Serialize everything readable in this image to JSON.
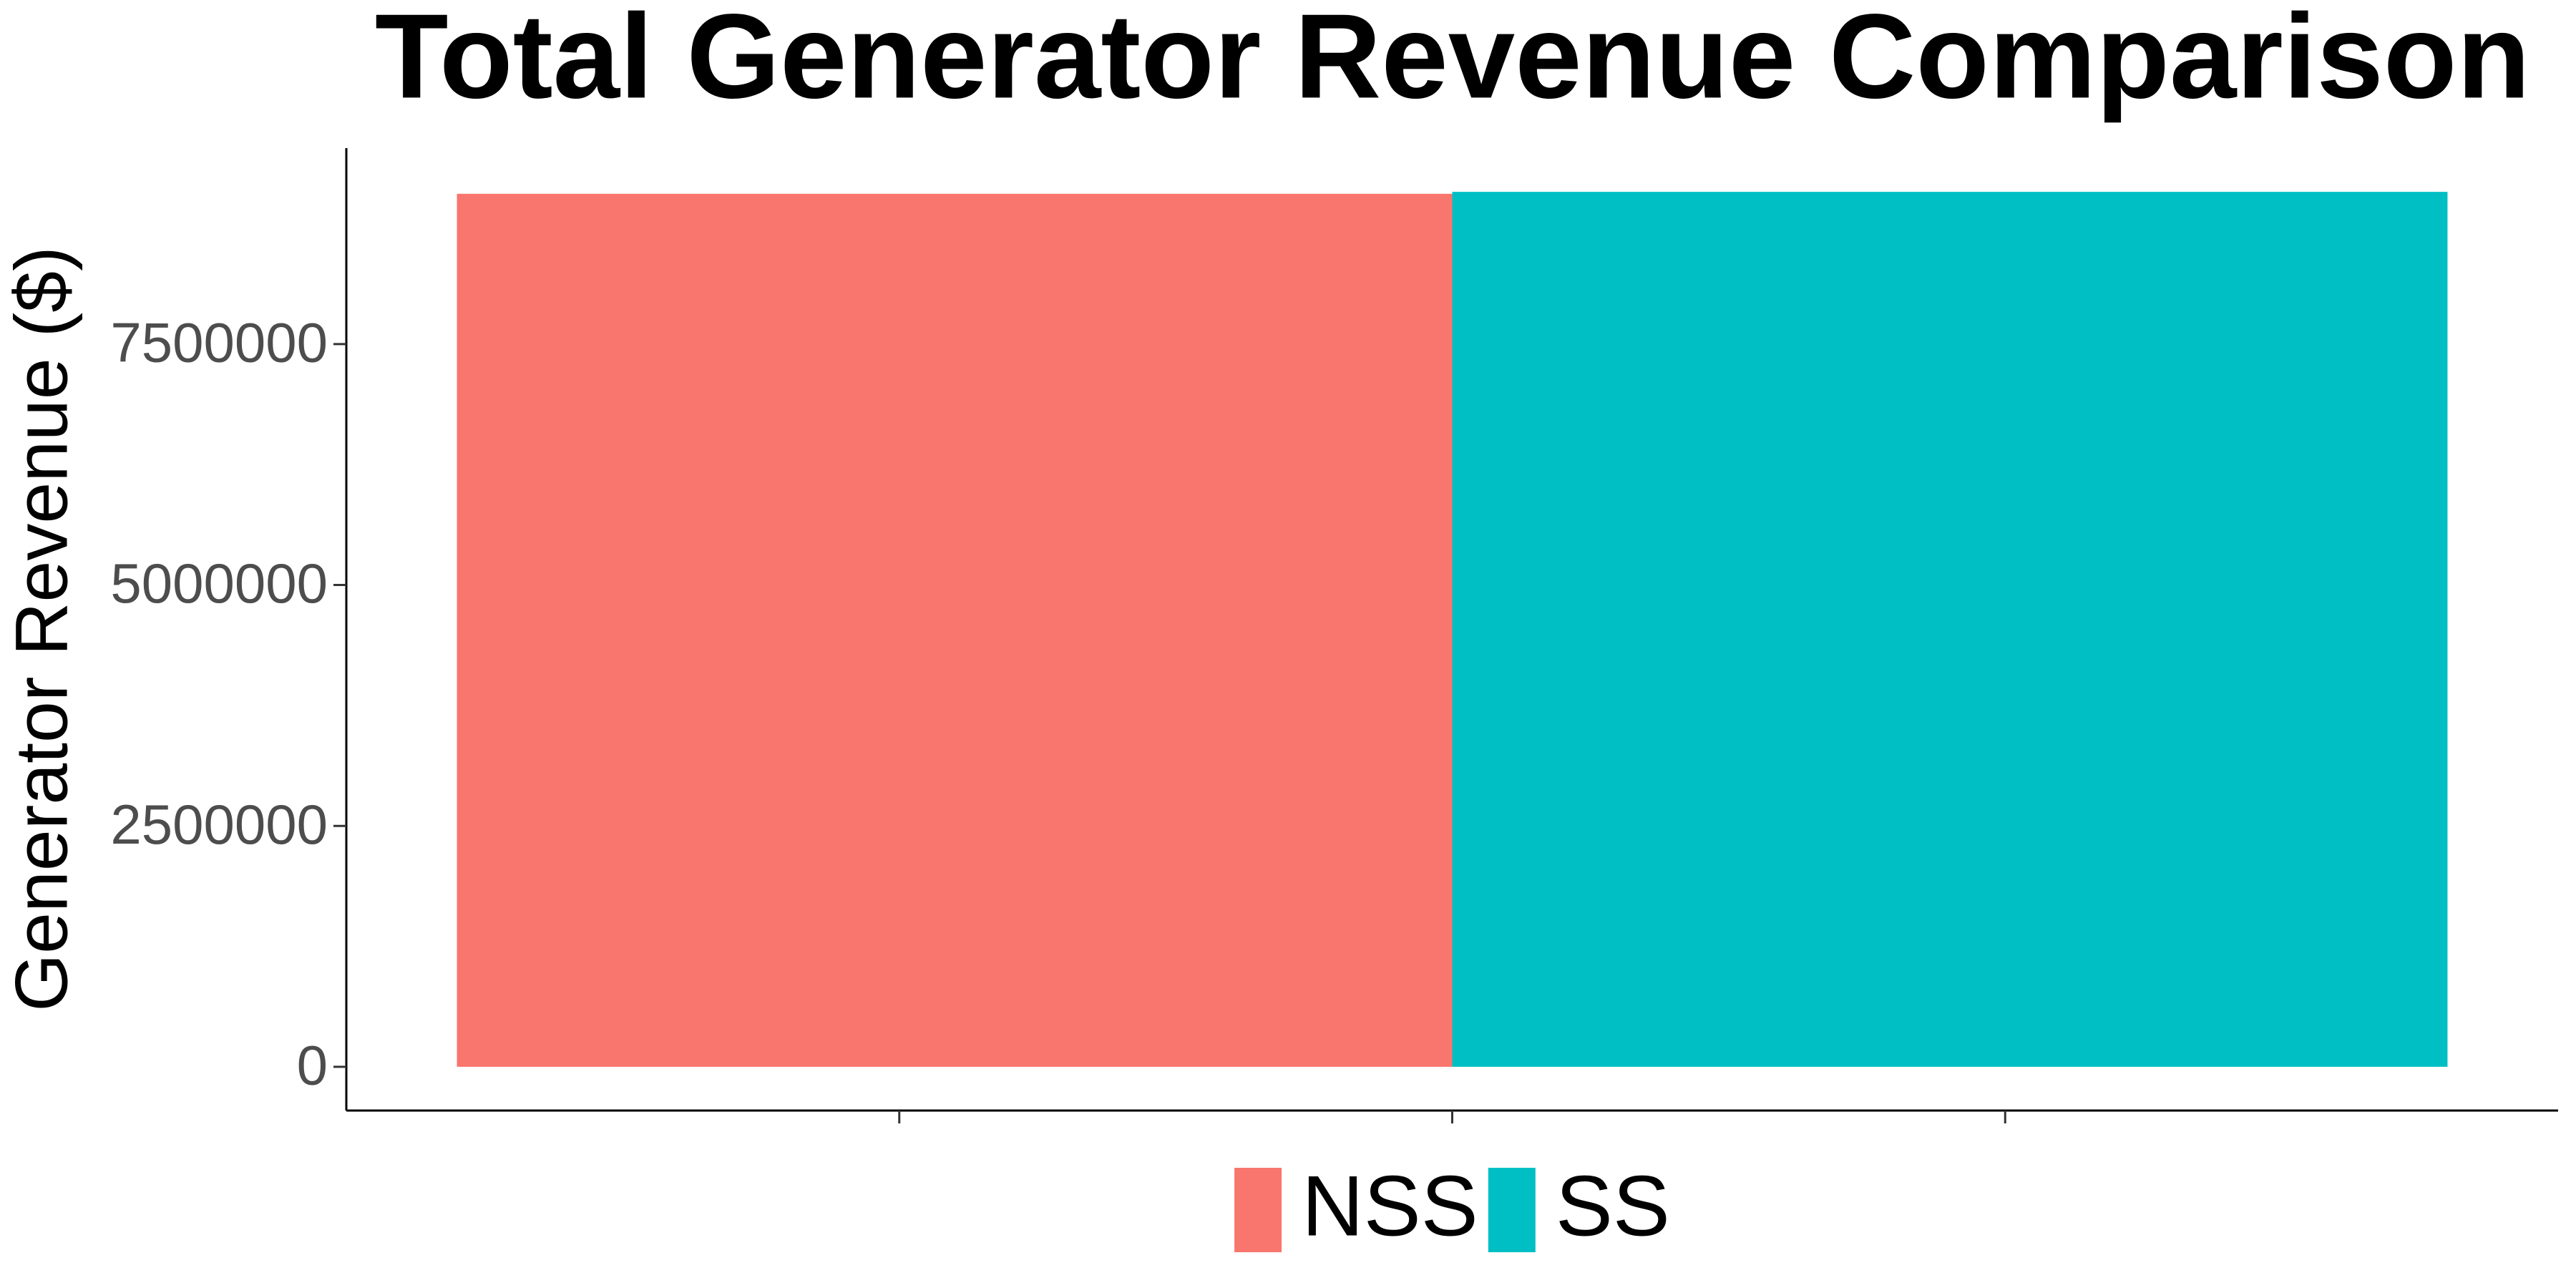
{
  "chart_data": {
    "type": "bar",
    "title": "Total Generator  Revenue  Comparison",
    "y_label": "Generator  Revenue  ($)",
    "categories": [
      null
    ],
    "series": [
      {
        "name": "NSS",
        "color": "#f8766d",
        "values": [
          9060000
        ]
      },
      {
        "name": "SS",
        "color": "#00bfc4",
        "values": [
          9080000
        ]
      }
    ],
    "bar_width": 0.9,
    "xlim": [
      0.5,
      1.5
    ],
    "xticks": [
      0.75,
      1,
      1.25
    ],
    "xtick_labels": false,
    "ylim": [
      -454000,
      9534000
    ],
    "yticks": [
      0,
      2500000,
      5000000,
      7500000
    ],
    "grid": false,
    "legend": "bottom"
  }
}
